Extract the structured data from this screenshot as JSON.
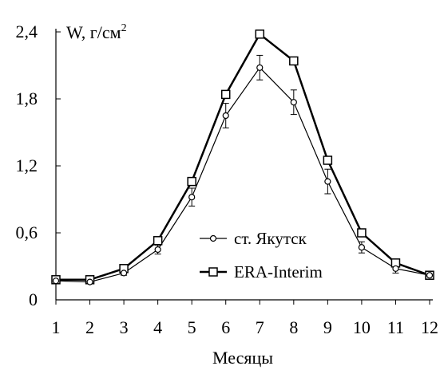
{
  "chart_data": {
    "type": "line",
    "ylabel": "W, г/см",
    "ylabel_superscript": "2",
    "xlabel": "Месяцы",
    "x": [
      1,
      2,
      3,
      4,
      5,
      6,
      7,
      8,
      9,
      10,
      11,
      12
    ],
    "xlim": [
      1,
      12
    ],
    "ylim": [
      0,
      2.4
    ],
    "yticks": [
      "0",
      "0,6",
      "1,2",
      "1,8",
      "2,4"
    ],
    "xticks": [
      "1",
      "2",
      "3",
      "4",
      "5",
      "6",
      "7",
      "8",
      "9",
      "10",
      "11",
      "12"
    ],
    "grid": false,
    "legend_position": "center-right",
    "series": [
      {
        "name": "ст. Якутск",
        "marker": "circle",
        "values": [
          0.17,
          0.16,
          0.24,
          0.45,
          0.92,
          1.65,
          2.08,
          1.77,
          1.06,
          0.47,
          0.28,
          0.22
        ],
        "error": [
          0.0,
          0.0,
          0.02,
          0.04,
          0.08,
          0.11,
          0.11,
          0.11,
          0.11,
          0.05,
          0.04,
          0.0
        ],
        "color": "#000000"
      },
      {
        "name": "ERA-Interim",
        "marker": "square",
        "values": [
          0.18,
          0.18,
          0.28,
          0.53,
          1.06,
          1.84,
          2.38,
          2.14,
          1.25,
          0.6,
          0.33,
          0.22
        ],
        "color": "#000000"
      }
    ]
  }
}
